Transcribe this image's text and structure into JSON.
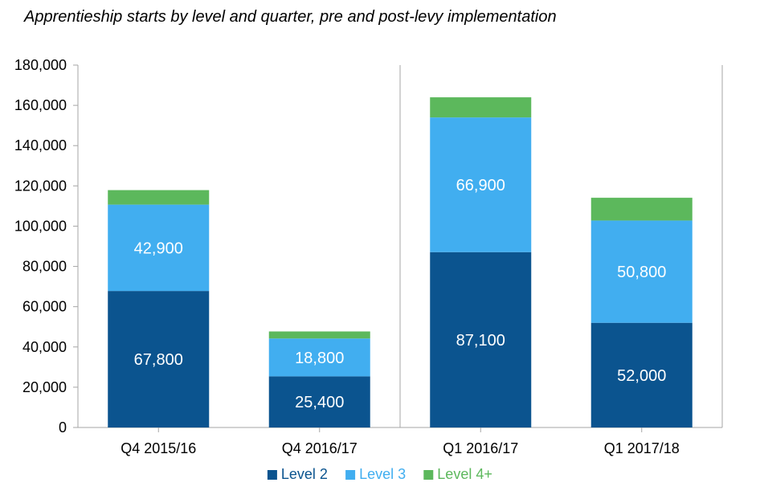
{
  "chart_data": {
    "type": "bar",
    "stacked": true,
    "title": "Apprentieship starts by level and quarter, pre and post-levy implementation",
    "xlabel": "",
    "ylabel": "",
    "ylim": [
      0,
      180000
    ],
    "yticks": [
      0,
      20000,
      40000,
      60000,
      80000,
      100000,
      120000,
      140000,
      160000,
      180000
    ],
    "ytick_labels": [
      "0",
      "20,000",
      "40,000",
      "60,000",
      "80,000",
      "100,000",
      "120,000",
      "140,000",
      "160,000",
      "180,000"
    ],
    "categories": [
      "Q4 2015/16",
      "Q4 2016/17",
      "Q1 2016/17",
      "Q1 2017/18"
    ],
    "divider_after_category": 1,
    "grid": false,
    "legend_position": "bottom",
    "series": [
      {
        "name": "Level 2",
        "color": "#0b548f",
        "values": [
          67800,
          25400,
          87100,
          52000
        ],
        "labels": [
          "67,800",
          "25,400",
          "87,100",
          "52,000"
        ]
      },
      {
        "name": "Level 3",
        "color": "#41aef0",
        "values": [
          42900,
          18800,
          66900,
          50800
        ],
        "labels": [
          "42,900",
          "18,800",
          "66,900",
          "50,800"
        ]
      },
      {
        "name": "Level 4+",
        "color": "#5cb85c",
        "values": [
          7200,
          3500,
          10000,
          11300
        ],
        "labels": [
          "",
          "",
          "",
          ""
        ]
      }
    ]
  }
}
